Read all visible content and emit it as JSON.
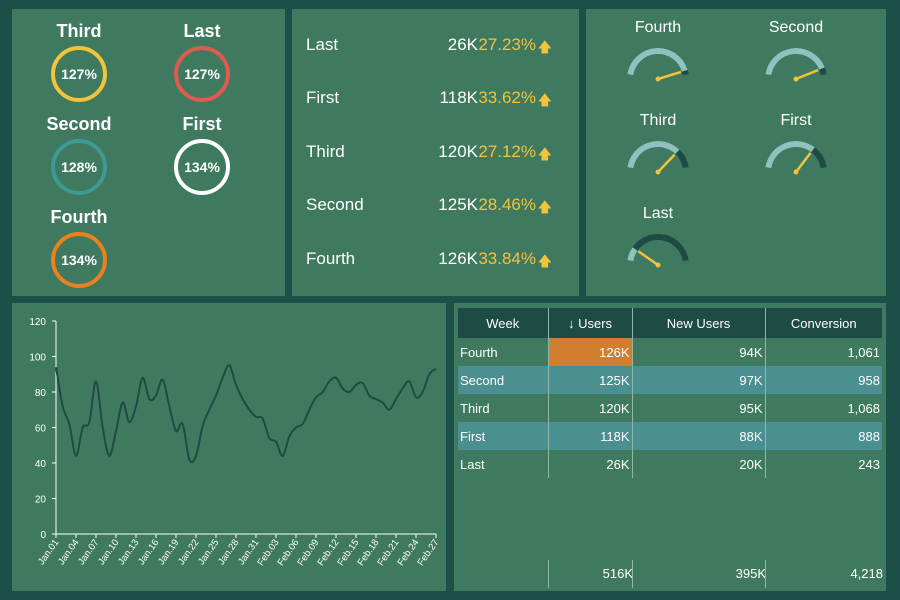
{
  "rings": [
    {
      "label": "Third",
      "value": "127%",
      "color": "#f2c33b"
    },
    {
      "label": "Last",
      "value": "127%",
      "color": "#e05a4f"
    },
    {
      "label": "Second",
      "value": "128%",
      "color": "#3f9a94"
    },
    {
      "label": "First",
      "value": "134%",
      "color": "#ffffff"
    },
    {
      "label": "Fourth",
      "value": "134%",
      "color": "#e8811e"
    }
  ],
  "list": [
    {
      "label": "Last",
      "value": "26K",
      "pct": "27.23%"
    },
    {
      "label": "First",
      "value": "118K",
      "pct": "33.62%"
    },
    {
      "label": "Third",
      "value": "120K",
      "pct": "27.12%"
    },
    {
      "label": "Second",
      "value": "125K",
      "pct": "28.46%"
    },
    {
      "label": "Fourth",
      "value": "126K",
      "pct": "33.84%"
    }
  ],
  "gauges": [
    {
      "label": "Fourth",
      "level": 0.95
    },
    {
      "label": "Second",
      "level": 0.92
    },
    {
      "label": "Third",
      "level": 0.77
    },
    {
      "label": "First",
      "level": 0.73
    },
    {
      "label": "Last",
      "level": 0.16
    }
  ],
  "table": {
    "headers": [
      "Week",
      "↓ Users",
      "New Users",
      "Conversion"
    ],
    "rows": [
      {
        "week": "Fourth",
        "users": "126K",
        "new": "94K",
        "conv": "1,061"
      },
      {
        "week": "Second",
        "users": "125K",
        "new": "97K",
        "conv": "958"
      },
      {
        "week": "Third",
        "users": "120K",
        "new": "95K",
        "conv": "1,068"
      },
      {
        "week": "First",
        "users": "118K",
        "new": "88K",
        "conv": "888"
      },
      {
        "week": "Last",
        "users": "26K",
        "new": "20K",
        "conv": "243"
      }
    ],
    "totals": {
      "users": "516K",
      "new": "395K",
      "conv": "4,218"
    }
  },
  "chart_data": {
    "type": "line",
    "title": "",
    "xlabel": "",
    "ylabel": "",
    "ylim": [
      0,
      120
    ],
    "yticks": [
      0,
      20,
      40,
      60,
      80,
      100,
      120
    ],
    "xticks": [
      "Jan.01",
      "Jan.04",
      "Jan.07",
      "Jan.10",
      "Jan.13",
      "Jan.16",
      "Jan.19",
      "Jan.22",
      "Jan.25",
      "Jan.28",
      "Jan.31",
      "Feb.03",
      "Feb.06",
      "Feb.09",
      "Feb.12",
      "Feb.15",
      "Feb.18",
      "Feb.21",
      "Feb.24",
      "Feb.27"
    ],
    "x_count": 58,
    "values": [
      94,
      72,
      62,
      44,
      60,
      63,
      86,
      60,
      44,
      58,
      74,
      63,
      72,
      88,
      76,
      78,
      87,
      72,
      58,
      62,
      42,
      44,
      61,
      70,
      78,
      88,
      95,
      84,
      76,
      70,
      66,
      65,
      54,
      52,
      44,
      55,
      60,
      62,
      70,
      77,
      80,
      86,
      88,
      82,
      80,
      84,
      85,
      78,
      76,
      74,
      70,
      76,
      82,
      86,
      77,
      80,
      90,
      93
    ]
  }
}
